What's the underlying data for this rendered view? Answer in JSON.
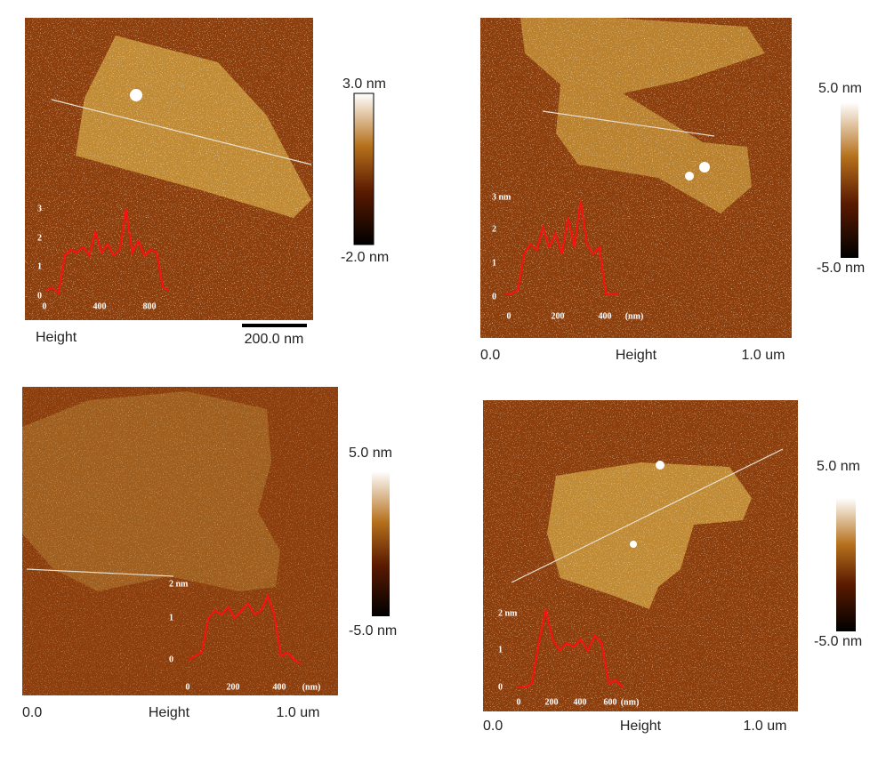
{
  "panels": [
    {
      "scale_top": "3.0 nm",
      "scale_bottom": "-2.0 nm",
      "footer": [
        "Height",
        "200.0 nm"
      ],
      "inset": {
        "yticks": [
          "3",
          "2",
          "1",
          "0"
        ],
        "xticks": [
          "0",
          "400",
          "800"
        ],
        "ylim": [
          0,
          3
        ],
        "profile": [
          0.2,
          0.3,
          0.1,
          1.4,
          1.6,
          1.5,
          1.7,
          1.4,
          2.2,
          1.5,
          1.8,
          1.4,
          1.6,
          3.0,
          1.5,
          1.9,
          1.4,
          1.6,
          1.5,
          0.3,
          0.2
        ]
      }
    },
    {
      "scale_top": "5.0 nm",
      "scale_bottom": "-5.0 nm",
      "footer": [
        "0.0",
        "Height",
        "1.0 um"
      ],
      "inset": {
        "yticks": [
          "3 nm",
          "2",
          "1",
          "0"
        ],
        "xticks": [
          "0",
          "200",
          "400",
          "(nm)"
        ],
        "ylim": [
          0,
          3
        ],
        "profile": [
          0.1,
          0.1,
          0.2,
          1.3,
          1.6,
          1.4,
          2.1,
          1.5,
          1.9,
          1.3,
          2.4,
          1.5,
          2.9,
          1.6,
          1.3,
          1.5,
          0.1,
          0.1,
          0.1
        ]
      }
    },
    {
      "scale_top": "5.0 nm",
      "scale_bottom": "-5.0 nm",
      "footer": [
        "0.0",
        "Height",
        "1.0 um"
      ],
      "inset": {
        "yticks": [
          "2 nm",
          "1",
          "0"
        ],
        "xticks": [
          "0",
          "200",
          "400",
          "(nm)"
        ],
        "ylim": [
          0,
          2
        ],
        "profile": [
          0,
          0.1,
          0.2,
          1.1,
          1.3,
          1.2,
          1.4,
          1.1,
          1.3,
          1.5,
          1.2,
          1.3,
          1.7,
          1.2,
          0.1,
          0.2,
          0,
          -0.1
        ]
      }
    },
    {
      "scale_top": "5.0 nm",
      "scale_bottom": "-5.0 nm",
      "footer": [
        "0.0",
        "Height",
        "1.0 um"
      ],
      "inset": {
        "yticks": [
          "2 nm",
          "1",
          "0"
        ],
        "xticks": [
          "0",
          "200",
          "400",
          "600",
          "(nm)"
        ],
        "ylim": [
          0,
          2
        ],
        "profile": [
          0,
          0,
          0.1,
          1.2,
          2.1,
          1.3,
          1.0,
          1.2,
          1.1,
          1.3,
          1.0,
          1.4,
          1.2,
          0.1,
          0.2,
          0
        ]
      }
    }
  ]
}
